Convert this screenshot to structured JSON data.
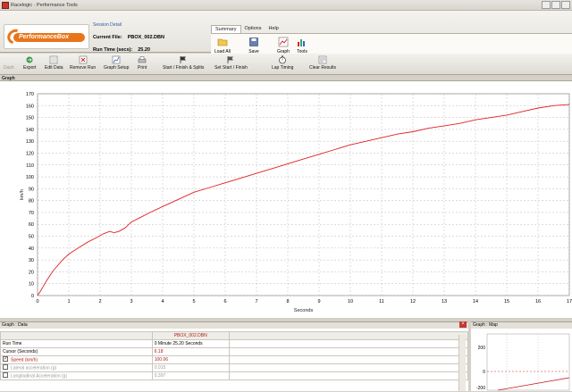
{
  "window": {
    "title": "Racelogic · Performance Tools"
  },
  "header": {
    "logo_text": "PerformanceBox",
    "session_title": "Session Detail",
    "current_file_label": "Current File:",
    "current_file_value": "PBOX_002.DBN",
    "run_time_label": "Run Time (secs):",
    "run_time_value": "25.20",
    "menu_tabs": [
      "Summary",
      "Options",
      "Help"
    ],
    "ribbon": [
      "Load All",
      "Save",
      "Graph",
      "Tools"
    ]
  },
  "toolbar": {
    "items": [
      "Dash",
      "Export",
      "Edit Data",
      "Remove Run",
      "Graph Setup",
      "Print",
      "Start / Finish & Splits",
      "Set Start / Finish",
      "Lap Timing",
      "Clear Results"
    ]
  },
  "graph_section": {
    "title": "Graph"
  },
  "chart_data": {
    "type": "line",
    "xlabel": "Seconds",
    "ylabel": "km/h",
    "xlim": [
      0,
      17
    ],
    "ylim": [
      0,
      170
    ],
    "xticks": [
      0,
      1,
      2,
      3,
      4,
      5,
      6,
      7,
      8,
      9,
      10,
      11,
      12,
      13,
      14,
      15,
      16,
      17
    ],
    "yticks": [
      0,
      10,
      20,
      30,
      40,
      50,
      60,
      70,
      80,
      90,
      100,
      110,
      120,
      130,
      140,
      150,
      160,
      170
    ],
    "grid": true,
    "series": [
      {
        "color": "#e02020",
        "x": [
          0,
          0.1,
          0.3,
          0.5,
          0.8,
          1.0,
          1.3,
          1.6,
          1.9,
          2.1,
          2.3,
          2.45,
          2.6,
          2.8,
          3.0,
          3.3,
          3.6,
          4.0,
          4.5,
          5.0,
          5.5,
          6.0,
          6.5,
          7.0,
          7.5,
          8.0,
          8.5,
          9.0,
          9.5,
          10.0,
          10.5,
          11.0,
          11.5,
          12.0,
          12.5,
          13.0,
          13.5,
          14.0,
          14.5,
          15.0,
          15.5,
          16.0,
          16.5,
          17.0
        ],
        "y": [
          0,
          4,
          13,
          21,
          30,
          35,
          40,
          45,
          49,
          52,
          54,
          53,
          54,
          57,
          62,
          66,
          70,
          75,
          81,
          87,
          91,
          95,
          99,
          103,
          107,
          111,
          115,
          119,
          123,
          127,
          130,
          133,
          136,
          138,
          141,
          143,
          145,
          148,
          150,
          152,
          155,
          158,
          160,
          161
        ]
      }
    ]
  },
  "data_section": {
    "title": "Graph : Data",
    "file_column": "PBOX_002.DBN",
    "rows": [
      {
        "name": "Run Time",
        "value": "0 Minute 25.20 Seconds",
        "checkbox": false,
        "active": false
      },
      {
        "name": "Cursor (Seconds)",
        "value": "6.18",
        "checkbox": false,
        "active": false
      },
      {
        "name": "Speed (km/h)",
        "value": "100.06",
        "checkbox": true,
        "active": true
      },
      {
        "name": "Lateral acceleration (g)",
        "value": "0.015",
        "checkbox": true,
        "active": false
      },
      {
        "name": "Longitudinal Acceleration (g)",
        "value": "0.397",
        "checkbox": true,
        "active": false
      }
    ]
  },
  "map_section": {
    "title": "Graph : Map",
    "ticks": [
      "200",
      "0",
      "-200"
    ]
  }
}
